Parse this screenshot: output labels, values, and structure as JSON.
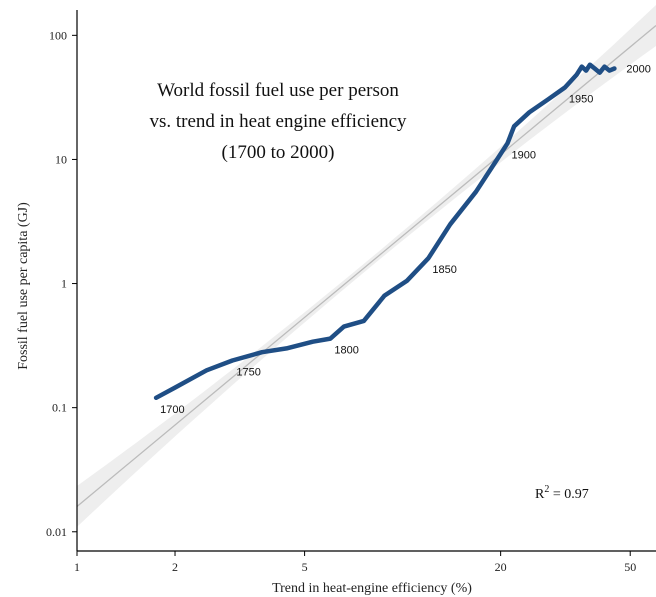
{
  "chart_data": {
    "type": "line",
    "title_lines": [
      "World fossil fuel use per person",
      "vs. trend in heat engine efficiency",
      "(1700 to 2000)"
    ],
    "xlabel": "Trend in heat-engine efficiency (%)",
    "ylabel": "Fossil fuel use per capita (GJ)",
    "x_scale": "log",
    "y_scale": "log",
    "xlim": [
      1,
      60
    ],
    "ylim": [
      0.007,
      160
    ],
    "x_ticks": [
      1,
      2,
      5,
      20,
      50
    ],
    "x_tick_labels": [
      "1",
      "2",
      "5",
      "20",
      "50"
    ],
    "y_ticks": [
      0.01,
      0.1,
      1,
      10,
      100
    ],
    "y_tick_labels": [
      "0.01",
      "0.1",
      "1",
      "10",
      "100"
    ],
    "annotation": {
      "text": "R",
      "superscript": "2",
      "rest": " = 0.97"
    },
    "colors": {
      "series": "#1f4e85",
      "fit": "#bbbbbb",
      "band": "#eeeeee"
    },
    "fit_line": {
      "x": [
        1,
        60
      ],
      "y": [
        0.016,
        120
      ]
    },
    "series": [
      {
        "x": [
          1.75,
          2.0,
          2.5,
          3.0,
          3.7,
          4.4,
          5.3,
          6.0,
          6.6,
          7.6,
          8.8,
          10.3,
          12.0,
          14.0,
          16.8,
          19.5,
          21.0,
          22.0,
          24.5,
          28.0,
          31.5,
          34.2,
          35.5,
          36.6,
          37.6,
          38.9,
          40.3,
          41.7,
          43.2,
          44.7
        ],
        "y": [
          0.12,
          0.145,
          0.2,
          0.24,
          0.28,
          0.3,
          0.34,
          0.36,
          0.45,
          0.5,
          0.8,
          1.05,
          1.6,
          3.0,
          5.5,
          10.0,
          13.5,
          18.5,
          24.0,
          30.5,
          38.0,
          48.0,
          56.0,
          52.0,
          58.0,
          54.0,
          50.0,
          56.0,
          52.0,
          54.0
        ]
      }
    ],
    "year_labels": [
      {
        "text": "1700",
        "x": 1.75,
        "y": 0.12
      },
      {
        "text": "1750",
        "x": 3.0,
        "y": 0.24
      },
      {
        "text": "1800",
        "x": 6.0,
        "y": 0.36
      },
      {
        "text": "1850",
        "x": 12.0,
        "y": 1.6
      },
      {
        "text": "1900",
        "x": 21.0,
        "y": 13.5
      },
      {
        "text": "1950",
        "x": 31.5,
        "y": 38.0
      },
      {
        "text": "2000",
        "x": 44.7,
        "y": 54.0
      }
    ],
    "grid": false
  }
}
